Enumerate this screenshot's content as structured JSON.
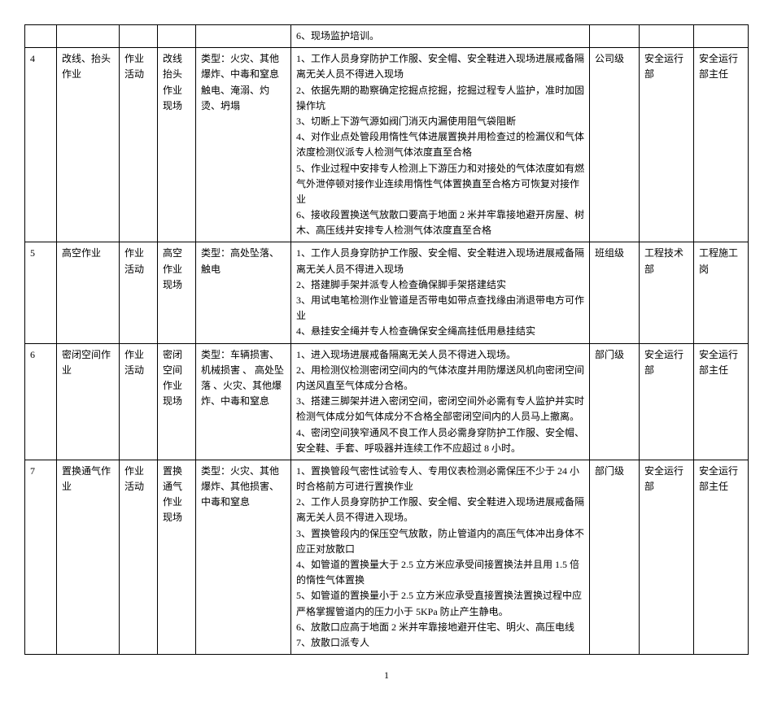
{
  "page_number": "1",
  "rows": [
    {
      "idx": "",
      "name": "",
      "cat": "",
      "loc": "",
      "type": "",
      "measures": "6、现场监护培训。",
      "level": "",
      "dept": "",
      "resp": ""
    },
    {
      "idx": "4",
      "name": "改线、抬头作业",
      "cat": "作业活动",
      "loc": "改线抬头作业现场",
      "type": "类型：火灾、其他爆炸、中毒和窒息触电、淹溺、灼烫、坍塌",
      "measures": "1、工作人员身穿防护工作服、安全帽、安全鞋进入现场进展戒备隔离无关人员不得进入现场\n2、依据先期的勘察确定挖掘点挖掘，挖掘过程专人监护，准时加固操作坑\n3、切断上下游气源如阀门消灭内漏使用阻气袋阻断\n4、对作业点处管段用惰性气体进展置换并用检查过的检漏仪和气体浓度检测仪派专人检测气体浓度直至合格\n5、作业过程中安排专人检测上下游压力和对接处的气体浓度如有燃气外泄停顿对接作业连续用惰性气体置换直至合格方可恢复对接作业\n6、接收段置换送气放散口要高于地面 2 米并牢靠接地避开房屋、树木、高压线并安排专人检测气体浓度直至合格",
      "level": "公司级",
      "dept": "安全运行部",
      "resp": "安全运行部主任"
    },
    {
      "idx": "5",
      "name": "高空作业",
      "cat": "作业活动",
      "loc": "高空作业现场",
      "type": "类型：高处坠落、触电",
      "measures": "1、工作人员身穿防护工作服、安全帽、安全鞋进入现场进展戒备隔离无关人员不得进入现场\n2、搭建脚手架并派专人检查确保脚手架搭建结实\n3、用试电笔检测作业管道是否带电如带点查找缘由消退带电方可作业\n4、悬挂安全绳并专人检查确保安全绳高挂低用悬挂结实",
      "level": "班组级",
      "dept": "工程技术部",
      "resp": "工程施工岗"
    },
    {
      "idx": "6",
      "name": "密闭空间作业",
      "cat": "作业活动",
      "loc": "密闭空间作业现场",
      "type": "类型：车辆损害、机械损害 、 高处坠落 、火灾、其他爆炸、中毒和窒息",
      "measures": "1、进入现场进展戒备隔离无关人员不得进入现场。\n2、用检测仪检测密闭空间内的气体浓度并用防爆送风机向密闭空间内送风直至气体成分合格。\n3、搭建三脚架并进入密闭空间，密闭空间外必需有专人监护并实时检测气体成分如气体成分不合格全部密闭空间内的人员马上撤离。\n4、密闭空间狭窄通风不良工作人员必需身穿防护工作服、安全帽、安全鞋、手套、呼吸器并连续工作不应超过 8 小时。",
      "level": "部门级",
      "dept": "安全运行部",
      "resp": "安全运行部主任"
    },
    {
      "idx": "7",
      "name": "置换通气作业",
      "cat": "作业活动",
      "loc": "置换通气作业现场",
      "type": "类型：火灾、其他爆炸、其他损害、中毒和窒息",
      "measures": "1、置换管段气密性试验专人、专用仪表检测必需保压不少于 24 小时合格前方可进行置换作业\n2、工作人员身穿防护工作服、安全帽、安全鞋进入现场进展戒备隔离无关人员不得进入现场。\n3、置换管段内的保压空气放散，防止管道内的高压气体冲出身体不应正对放散口\n4、如管道的置换量大于 2.5 立方米应承受间接置换法并且用 1.5 倍的惰性气体置换\n5、如管道的置换量小于 2.5 立方米应承受直接置换法置换过程中应严格掌握管道内的压力小于 5KPa 防止产生静电。\n6、放散口应高于地面 2 米并牢靠接地避开住宅、明火、高压电线 7、放散口派专人",
      "level": "部门级",
      "dept": "安全运行部",
      "resp": "安全运行部主任"
    }
  ]
}
